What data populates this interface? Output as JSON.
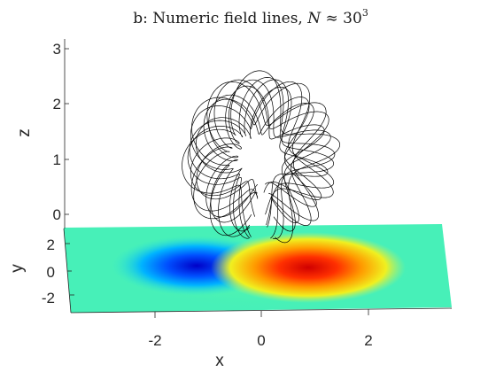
{
  "chart_data": {
    "type": "3d-field-lines",
    "title": {
      "prefix": "b: Numeric field lines, ",
      "variable": "N",
      "approx": " ≈ ",
      "base": "30",
      "exponent": "3"
    },
    "xlabel": "x",
    "ylabel": "y",
    "zlabel": "z",
    "x_ticks": [
      "-2",
      "0",
      "2"
    ],
    "y_ticks": [
      "2",
      "0",
      "-2"
    ],
    "z_ticks": [
      "3",
      "2",
      "1",
      "0"
    ],
    "xlim": [
      -3.5,
      3.5
    ],
    "ylim": [
      -3.5,
      3.5
    ],
    "zlim": [
      0,
      3.2
    ],
    "grid": false,
    "colormap": "jet",
    "surface": {
      "plane": "z = 0",
      "field": "bipolar",
      "negative_pole": {
        "x": -1.1,
        "y": 0.0,
        "color": "blue"
      },
      "positive_pole": {
        "x": 0.8,
        "y": 0.0,
        "color": "red"
      }
    },
    "field_lines": {
      "color": "#000000",
      "shape": "flux rope torus",
      "center": {
        "x": 0.0,
        "z": 1.0
      },
      "major_radius": 1.0,
      "minor_radius": 0.45,
      "count": 12,
      "turns_per_line": 4
    }
  }
}
